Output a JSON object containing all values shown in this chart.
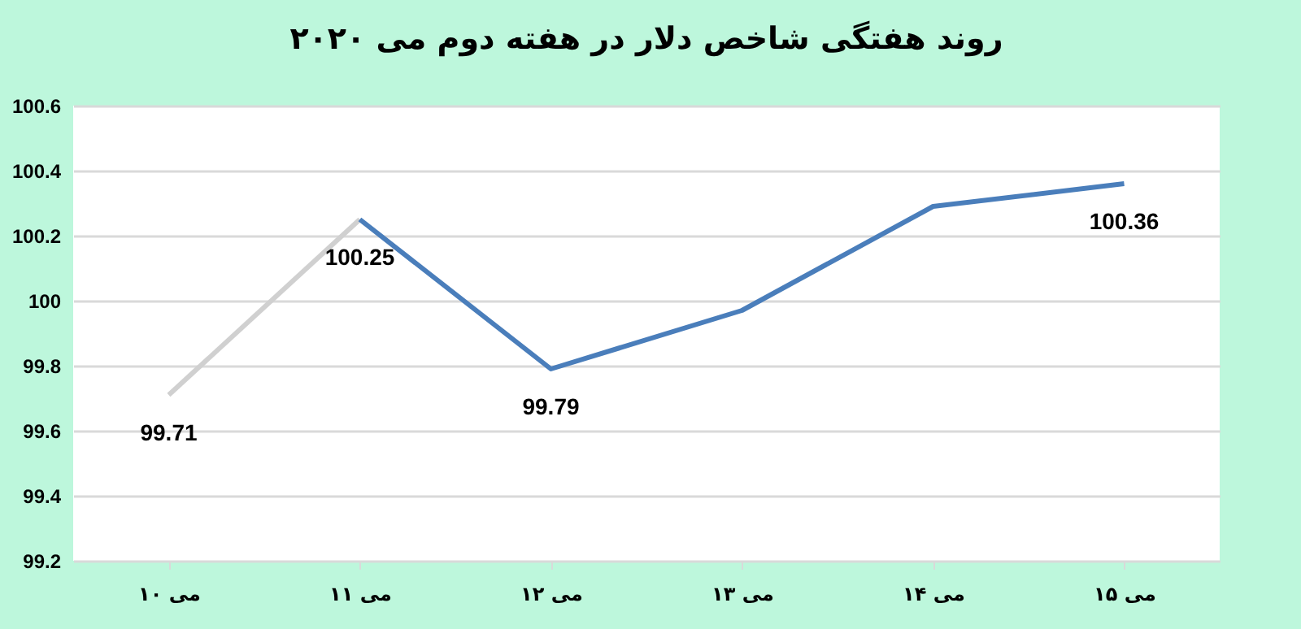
{
  "chart_data": {
    "type": "line",
    "title": "روند هفتگی شاخص دلار در هفته دوم می ۲۰۲۰",
    "categories": [
      "۱۰ می",
      "۱۱ می",
      "۱۲ می",
      "۱۳ می",
      "۱۴ می",
      "۱۵ می"
    ],
    "series": [
      {
        "color": "#d0d0d0",
        "values": [
          99.71,
          100.25,
          null,
          null,
          null,
          null
        ],
        "value_labels": [
          "99.71",
          null,
          null,
          null,
          null,
          null
        ]
      },
      {
        "color": "#4a7ebb",
        "values": [
          null,
          100.25,
          99.79,
          99.97,
          100.29,
          100.36
        ],
        "value_labels": [
          null,
          "100.25",
          "99.79",
          null,
          null,
          "100.36"
        ]
      }
    ],
    "ylim": [
      99.2,
      100.6
    ],
    "yticks": [
      99.2,
      99.4,
      99.6,
      99.8,
      100,
      100.2,
      100.4,
      100.6
    ],
    "grid": "y",
    "legend": false,
    "marker": "none",
    "line_style": "solid"
  }
}
